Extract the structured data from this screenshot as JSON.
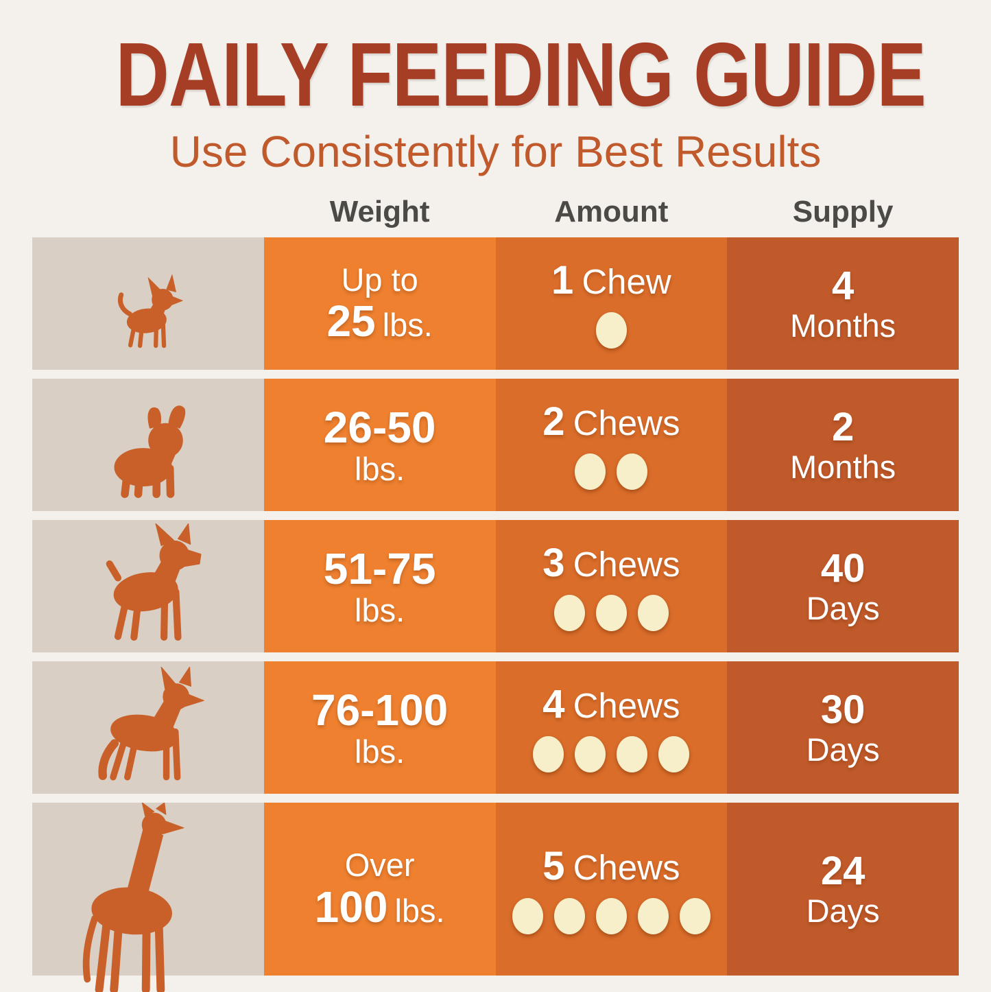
{
  "title": "DAILY FEEDING GUIDE",
  "subtitle": "Use Consistently for Best Results",
  "columns": [
    "Weight",
    "Amount",
    "Supply"
  ],
  "rows": [
    {
      "dog": {
        "icon": "chihuahua-dog-icon",
        "label": "chihuahua"
      },
      "weight": {
        "top": "Up to",
        "top_style": "regular",
        "bottom_bold": "25",
        "bottom_regular": "lbs."
      },
      "amount": {
        "count": "1",
        "label": "Chew",
        "dots": 1
      },
      "supply": {
        "value": "4",
        "unit": "Months"
      }
    },
    {
      "dog": {
        "icon": "french-bulldog-dog-icon",
        "label": "french bulldog"
      },
      "weight": {
        "top": "26-50",
        "top_style": "bold",
        "bottom_bold": "",
        "bottom_regular": "lbs."
      },
      "amount": {
        "count": "2",
        "label": "Chews",
        "dots": 2
      },
      "supply": {
        "value": "2",
        "unit": "Months"
      }
    },
    {
      "dog": {
        "icon": "boxer-dog-icon",
        "label": "boxer"
      },
      "weight": {
        "top": "51-75",
        "top_style": "bold",
        "bottom_bold": "",
        "bottom_regular": "lbs."
      },
      "amount": {
        "count": "3",
        "label": "Chews",
        "dots": 3
      },
      "supply": {
        "value": "40",
        "unit": "Days"
      }
    },
    {
      "dog": {
        "icon": "german-shepherd-dog-icon",
        "label": "german shepherd"
      },
      "weight": {
        "top": "76-100",
        "top_style": "bold",
        "bottom_bold": "",
        "bottom_regular": "lbs."
      },
      "amount": {
        "count": "4",
        "label": "Chews",
        "dots": 4
      },
      "supply": {
        "value": "30",
        "unit": "Days"
      }
    },
    {
      "dog": {
        "icon": "great-dane-dog-icon",
        "label": "great dane"
      },
      "weight": {
        "top": "Over",
        "top_style": "regular",
        "bottom_bold": "100",
        "bottom_regular": "lbs."
      },
      "amount": {
        "count": "5",
        "label": "Chews",
        "dots": 5
      },
      "supply": {
        "value": "24",
        "unit": "Days"
      }
    }
  ],
  "chart_data": {
    "type": "table",
    "title": "DAILY FEEDING GUIDE",
    "subtitle": "Use Consistently for Best Results",
    "columns": [
      "Weight",
      "Amount",
      "Supply"
    ],
    "rows": [
      [
        "Up to 25 lbs.",
        "1 Chew",
        "4 Months"
      ],
      [
        "26-50 lbs.",
        "2 Chews",
        "2 Months"
      ],
      [
        "51-75 lbs.",
        "3 Chews",
        "40 Days"
      ],
      [
        "76-100 lbs.",
        "4 Chews",
        "30 Days"
      ],
      [
        "Over 100 lbs.",
        "5 Chews",
        "24 Days"
      ]
    ]
  },
  "colors": {
    "page_bg": "#f4f1ec",
    "title_text": "#a63e26",
    "subtitle_text": "#c05a2d",
    "header_text": "#4b4a47",
    "dog_cell_bg": "#d9cfc4",
    "dog_fill": "#c9602a",
    "weight_col_bg": "#ee802f",
    "amount_col_bg": "#da6d2a",
    "supply_col_bg": "#c15a2a",
    "chew_dot": "#f6efca",
    "cell_text": "#ffffff"
  }
}
